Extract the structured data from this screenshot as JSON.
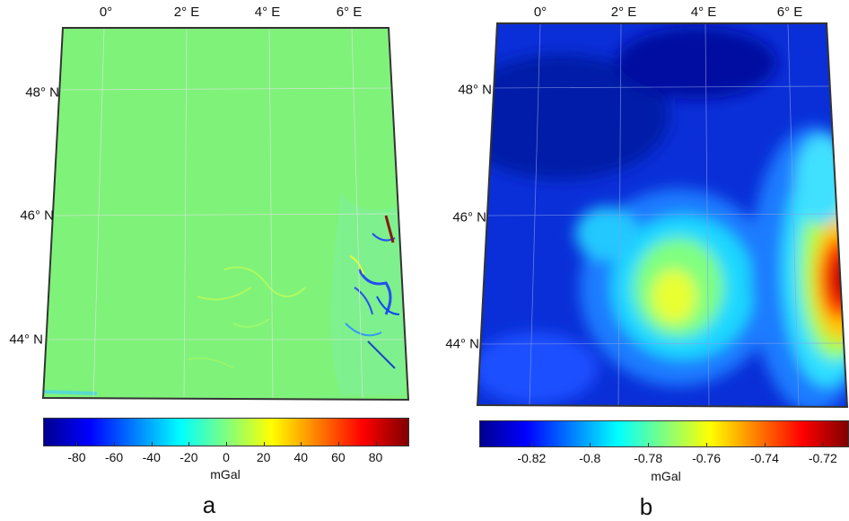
{
  "panels": [
    {
      "id": "a",
      "letter": "a",
      "lon_labels": [
        "0°",
        "2° E",
        "4° E",
        "6° E"
      ],
      "lat_labels": [
        "48° N",
        "46° N",
        "44° N"
      ],
      "field": "uniform-with-edge-anomalies",
      "base_color": "#7ff27a",
      "colorbar": {
        "unit": "mGal",
        "ticks": [
          "-80",
          "-60",
          "-40",
          "-20",
          "0",
          "20",
          "40",
          "60",
          "80"
        ],
        "tick_values": [
          -80,
          -60,
          -40,
          -20,
          0,
          20,
          40,
          60,
          80
        ],
        "range": [
          -98,
          98
        ],
        "colormap": "jet"
      }
    },
    {
      "id": "b",
      "letter": "b",
      "lon_labels": [
        "0°",
        "2° E",
        "4° E",
        "6° E"
      ],
      "lat_labels": [
        "48° N",
        "46° N",
        "44° N"
      ],
      "field": "smooth-blobs",
      "base_color": "#0a2fd8",
      "colorbar": {
        "unit": "mGal",
        "ticks": [
          "-0.82",
          "-0.8",
          "-0.78",
          "-0.76",
          "-0.74",
          "-0.72"
        ],
        "tick_values": [
          -0.82,
          -0.8,
          -0.78,
          -0.76,
          -0.74,
          -0.72
        ],
        "range": [
          -0.838,
          -0.711
        ],
        "colormap": "jet"
      }
    }
  ]
}
